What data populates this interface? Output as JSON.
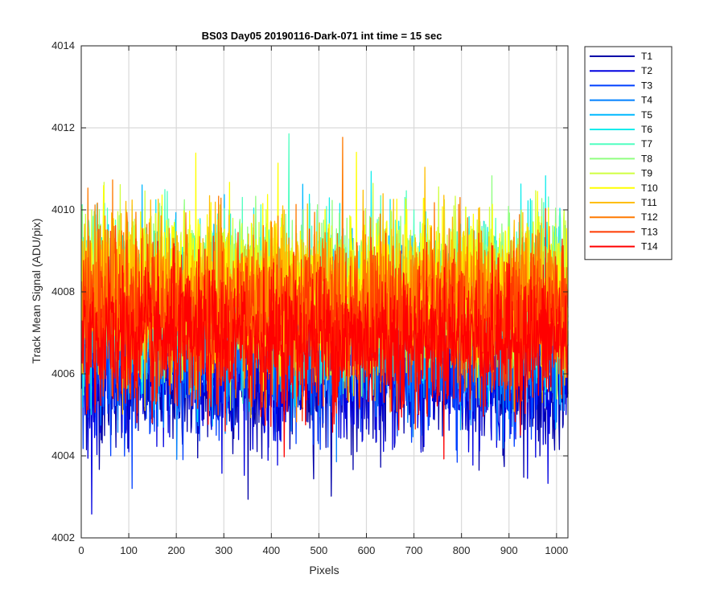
{
  "chart_data": {
    "type": "line",
    "title": "BS03 Day05 20190116-Dark-071 int time = 15 sec",
    "xlabel": "Pixels",
    "ylabel": "Track Mean Signal (ADU/pix)",
    "xlim": [
      0,
      1024
    ],
    "ylim": [
      4002,
      4014
    ],
    "xticks": [
      0,
      100,
      200,
      300,
      400,
      500,
      600,
      700,
      800,
      900,
      1000
    ],
    "yticks": [
      4002,
      4004,
      4006,
      4008,
      4010,
      4012,
      4014
    ],
    "grid": true,
    "legend_position": "outside-top-right",
    "x_count": 1024,
    "series": [
      {
        "name": "T1",
        "color": "#0000a8",
        "mean": 4005.9,
        "noise": 0.85
      },
      {
        "name": "T2",
        "color": "#0000e0",
        "mean": 4006.0,
        "noise": 0.85
      },
      {
        "name": "T3",
        "color": "#0040ff",
        "mean": 4006.4,
        "noise": 0.85
      },
      {
        "name": "T4",
        "color": "#0080ff",
        "mean": 4006.9,
        "noise": 0.9
      },
      {
        "name": "T5",
        "color": "#00b8ff",
        "mean": 4007.4,
        "noise": 0.9
      },
      {
        "name": "T6",
        "color": "#10ecec",
        "mean": 4007.8,
        "noise": 0.95
      },
      {
        "name": "T7",
        "color": "#50ffc0",
        "mean": 4008.0,
        "noise": 0.9
      },
      {
        "name": "T8",
        "color": "#90ff80",
        "mean": 4008.1,
        "noise": 0.9
      },
      {
        "name": "T9",
        "color": "#d0ff40",
        "mean": 4008.1,
        "noise": 0.9
      },
      {
        "name": "T10",
        "color": "#ffff00",
        "mean": 4008.0,
        "noise": 0.95
      },
      {
        "name": "T11",
        "color": "#ffbe00",
        "mean": 4007.9,
        "noise": 0.95
      },
      {
        "name": "T12",
        "color": "#ff7a00",
        "mean": 4007.7,
        "noise": 0.95
      },
      {
        "name": "T13",
        "color": "#ff3a00",
        "mean": 4007.3,
        "noise": 0.9
      },
      {
        "name": "T14",
        "color": "#ff0000",
        "mean": 4006.8,
        "noise": 0.85
      }
    ]
  }
}
